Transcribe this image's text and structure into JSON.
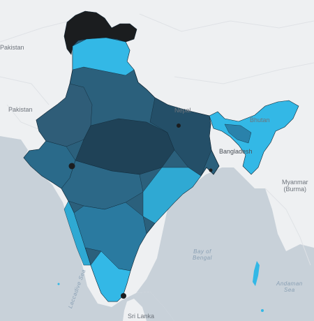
{
  "map": {
    "colors": {
      "land": "#eef0f2",
      "water": "#c8d1d9",
      "road": "#dfe2e6",
      "high": "#1f4257",
      "mid": "#2b607c",
      "low": "#2fa9d3",
      "lowest": "#33b8e6",
      "nodata": "#1b1d1f",
      "border": "#0e2331"
    },
    "labels": {
      "pakistan_top": "Pakistan",
      "pakistan": "Pakistan",
      "nepal": "Nepal",
      "bhutan": "Bhutan",
      "bangladesh": "Bangladesh",
      "myanmar_line1": "Myanmar",
      "myanmar_line2": "(Burma)",
      "bay_line1": "Bay of",
      "bay_line2": "Bengal",
      "andaman_line1": "Andaman",
      "andaman_line2": "Sea",
      "sri_lanka": "Sri Lanka",
      "laccadive": "Laccadive Sea"
    }
  }
}
